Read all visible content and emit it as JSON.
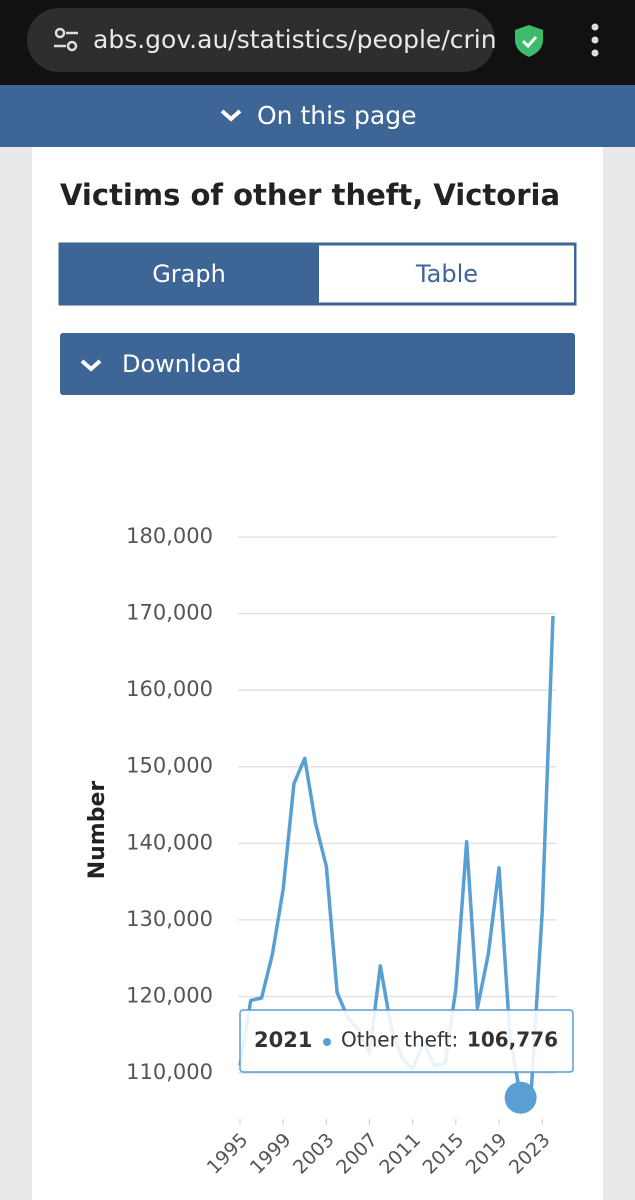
{
  "browser": {
    "url": "abs.gov.au/statistics/people/crin"
  },
  "nav": {
    "label": "On this page"
  },
  "section": {
    "title": "Victims of other theft, Victoria",
    "tabs": [
      "Graph",
      "Table"
    ],
    "download": "Download"
  },
  "chart_data": {
    "type": "line",
    "y_label": "Number",
    "x": [
      1995,
      1996,
      1997,
      1998,
      1999,
      2000,
      2001,
      2002,
      2003,
      2004,
      2005,
      2006,
      2007,
      2008,
      2009,
      2010,
      2011,
      2012,
      2013,
      2014,
      2015,
      2016,
      2017,
      2018,
      2019,
      2020,
      2021,
      2022,
      2023,
      2024
    ],
    "series": [
      {
        "name": "Other theft",
        "color": "#5a9fd4",
        "values": [
          111000,
          119500,
          119800,
          125500,
          134000,
          147800,
          151100,
          142600,
          137000,
          120500,
          117200,
          115600,
          112600,
          124000,
          116000,
          112000,
          110500,
          114000,
          111000,
          111200,
          121000,
          140200,
          118500,
          125500,
          136800,
          115000,
          106776,
          108000,
          131000,
          169700
        ]
      }
    ],
    "xlim": [
      1995,
      2024
    ],
    "xticks": [
      1995,
      1999,
      2003,
      2007,
      2011,
      2015,
      2019,
      2023
    ],
    "ylim": [
      104000,
      180000
    ],
    "yticks": [
      {
        "value": 110000,
        "label": "110,000"
      },
      {
        "value": 120000,
        "label": "120,000"
      },
      {
        "value": 130000,
        "label": "130,000"
      },
      {
        "value": 140000,
        "label": "140,000"
      },
      {
        "value": 150000,
        "label": "150,000"
      },
      {
        "value": 160000,
        "label": "160,000"
      },
      {
        "value": 170000,
        "label": "170,000"
      },
      {
        "value": 180000,
        "label": "180,000"
      }
    ],
    "grid": true,
    "tooltip": {
      "index": 26,
      "label": "Other theft:",
      "value_label": "106,776"
    }
  }
}
